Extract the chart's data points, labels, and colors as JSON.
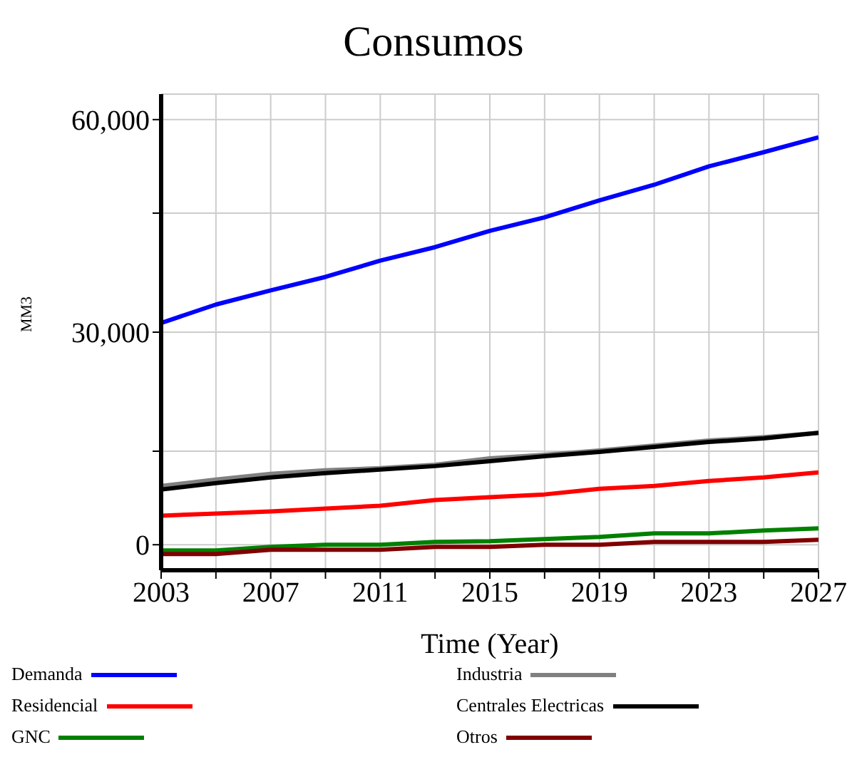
{
  "chart_data": {
    "type": "line",
    "title": "Consumos",
    "xlabel": "Time (Year)",
    "ylabel": "MM3",
    "x": [
      2003,
      2005,
      2007,
      2009,
      2011,
      2013,
      2015,
      2017,
      2019,
      2021,
      2023,
      2025,
      2027
    ],
    "series": [
      {
        "name": "Demanda",
        "color": "#0000ff",
        "values": [
          31300,
          33900,
          35900,
          37800,
          40100,
          42000,
          44300,
          46200,
          48600,
          50800,
          53400,
          55400,
          57500
        ]
      },
      {
        "name": "Residencial",
        "color": "#ff0000",
        "values": [
          4100,
          4400,
          4700,
          5100,
          5500,
          6300,
          6700,
          7100,
          7900,
          8300,
          9000,
          9500,
          10200
        ]
      },
      {
        "name": "GNC",
        "color": "#008000",
        "values": [
          -800,
          -800,
          -300,
          0,
          0,
          400,
          500,
          800,
          1100,
          1600,
          1600,
          2000,
          2300
        ]
      },
      {
        "name": "Industria",
        "color": "#808080",
        "values": [
          8300,
          9200,
          10000,
          10500,
          10800,
          11300,
          12200,
          12700,
          13300,
          14000,
          14700,
          15200,
          15800
        ]
      },
      {
        "name": "Centrales Electricas",
        "color": "#000000",
        "values": [
          7800,
          8700,
          9500,
          10100,
          10600,
          11100,
          11800,
          12500,
          13100,
          13800,
          14500,
          15000,
          15800
        ]
      },
      {
        "name": "Otros",
        "color": "#800000",
        "values": [
          -1300,
          -1300,
          -700,
          -700,
          -700,
          -300,
          -300,
          0,
          0,
          400,
          400,
          400,
          700
        ]
      }
    ],
    "xlim": [
      2003,
      2027
    ],
    "xticks": [
      2003,
      {
        "value": 2005,
        "label": null
      },
      2007,
      {
        "value": 2009,
        "label": null
      },
      2011,
      {
        "value": 2013,
        "label": null
      },
      2015,
      {
        "value": 2017,
        "label": null
      },
      2019,
      {
        "value": 2021,
        "label": null
      },
      2023,
      {
        "value": 2025,
        "label": null
      },
      2027
    ],
    "ylim": [
      -3600,
      63600
    ],
    "yticks": [
      {
        "value": 0,
        "label": "0"
      },
      {
        "value": 13200,
        "label": null
      },
      {
        "value": 30000,
        "label": "30,000"
      },
      {
        "value": 46800,
        "label": null
      },
      {
        "value": 60000,
        "label": "60,000"
      }
    ],
    "grid": true,
    "legend": "bottom",
    "line_style": "solid"
  }
}
